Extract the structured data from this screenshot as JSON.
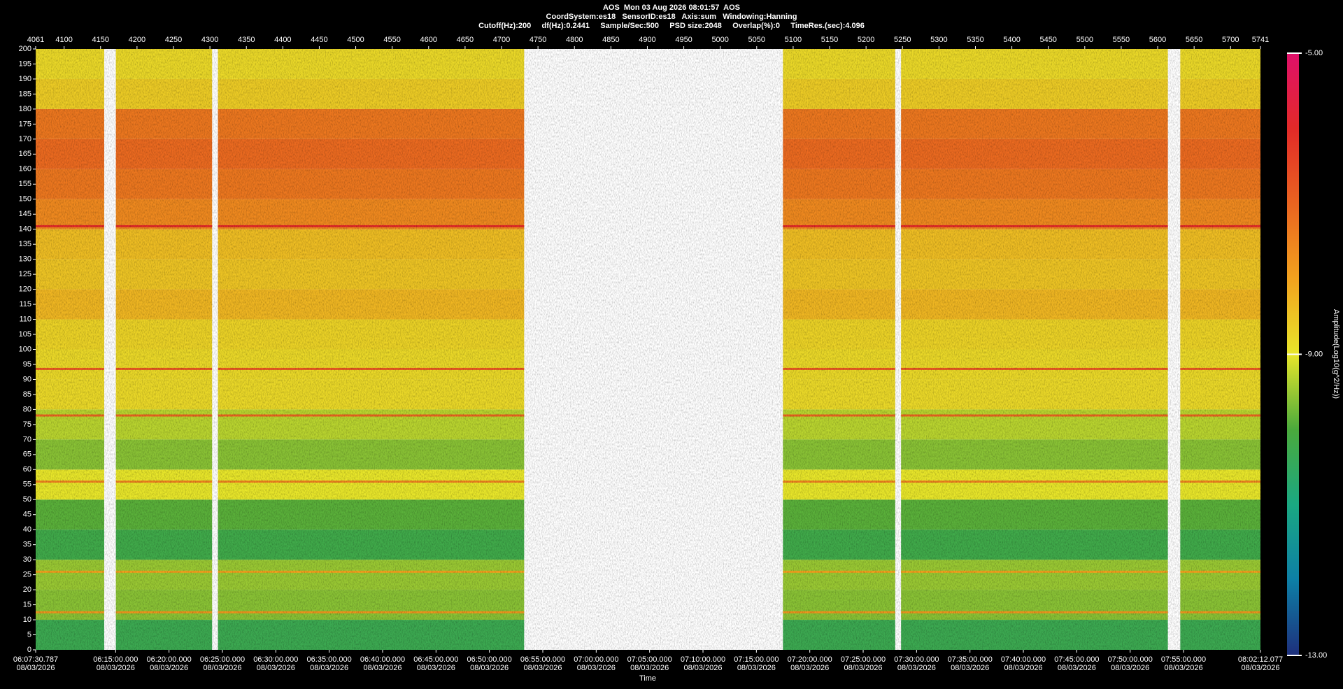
{
  "chart_data": {
    "type": "spectrogram",
    "title": "AOS  Mon 03 Aug 2026 08:01:57  AOS",
    "subtitle": "CoordSystem:es18   SensorID:es18   Axis:sum   Windowing:Hanning",
    "parameters": "Cutoff(Hz):200     df(Hz):0.2441     Sample/Sec:500     PSD size:2048     Overlap(%):0     TimeRes.(sec):4.096",
    "x_label": "Time",
    "colorbar_label": "Amplitude(Log10(g^2/Hz))",
    "xlim": [
      4061,
      5741
    ],
    "xticks": [
      4061,
      4100,
      4150,
      4200,
      4250,
      4300,
      4350,
      4400,
      4450,
      4500,
      4550,
      4600,
      4650,
      4700,
      4750,
      4800,
      4850,
      4900,
      4950,
      5000,
      5050,
      5100,
      5150,
      5200,
      5250,
      5300,
      5350,
      5400,
      5450,
      5500,
      5550,
      5600,
      5650,
      5700,
      5741
    ],
    "x2lim": [
      22050.787,
      28932.077
    ],
    "x2ticks": [
      {
        "value": 22050.787,
        "label": "06:07:30.787"
      },
      {
        "value": 22500,
        "label": "06:15:00.000"
      },
      {
        "value": 22800,
        "label": "06:20:00.000"
      },
      {
        "value": 23100,
        "label": "06:25:00.000"
      },
      {
        "value": 23400,
        "label": "06:30:00.000"
      },
      {
        "value": 23700,
        "label": "06:35:00.000"
      },
      {
        "value": 24000,
        "label": "06:40:00.000"
      },
      {
        "value": 24300,
        "label": "06:45:00.000"
      },
      {
        "value": 24600,
        "label": "06:50:00.000"
      },
      {
        "value": 24900,
        "label": "06:55:00.000"
      },
      {
        "value": 25200,
        "label": "07:00:00.000"
      },
      {
        "value": 25500,
        "label": "07:05:00.000"
      },
      {
        "value": 25800,
        "label": "07:10:00.000"
      },
      {
        "value": 26100,
        "label": "07:15:00.000"
      },
      {
        "value": 26400,
        "label": "07:20:00.000"
      },
      {
        "value": 26700,
        "label": "07:25:00.000"
      },
      {
        "value": 27000,
        "label": "07:30:00.000"
      },
      {
        "value": 27300,
        "label": "07:35:00.000"
      },
      {
        "value": 27600,
        "label": "07:40:00.000"
      },
      {
        "value": 27900,
        "label": "07:45:00.000"
      },
      {
        "value": 28200,
        "label": "07:50:00.000"
      },
      {
        "value": 28500,
        "label": "07:55:00.000"
      },
      {
        "value": 28932.077,
        "label": "08:02:12.077"
      }
    ],
    "x2tick_dates": [
      "08/03/2026",
      "08/03/2026",
      "08/03/2026",
      "08/03/2026",
      "08/03/2026",
      "08/03/2026",
      "08/03/2026",
      "08/03/2026",
      "08/03/2026",
      "08/03/2026",
      "08/03/2026",
      "08/03/2026",
      "08/03/2026",
      "08/03/2026",
      "08/03/2026",
      "08/03/2026",
      "08/03/2026",
      "08/03/2026",
      "08/03/2026",
      "08/03/2026",
      "08/03/2026",
      "08/03/2026",
      "08/03/2026"
    ],
    "ylim": [
      0,
      200
    ],
    "yticks": [
      0,
      5,
      10,
      15,
      20,
      25,
      30,
      35,
      40,
      45,
      50,
      55,
      60,
      65,
      70,
      75,
      80,
      85,
      90,
      95,
      100,
      105,
      110,
      115,
      120,
      125,
      130,
      135,
      140,
      145,
      150,
      155,
      160,
      165,
      170,
      175,
      180,
      185,
      190,
      195,
      200
    ],
    "segments": [
      [
        4061,
        4155
      ],
      [
        4171,
        4303
      ],
      [
        4311,
        4731
      ],
      [
        5086,
        5240
      ],
      [
        5248,
        5614
      ],
      [
        5631,
        5741
      ]
    ],
    "freq_edges": [
      0,
      10,
      20,
      30,
      40,
      50,
      60,
      70,
      80,
      90,
      100,
      110,
      120,
      130,
      140,
      150,
      160,
      170,
      180,
      190,
      200
    ],
    "amplitude": [
      -10.3,
      -9.6,
      -9.5,
      -10.2,
      -9.9,
      -9.0,
      -9.6,
      -9.3,
      -8.8,
      -8.8,
      -8.7,
      -8.3,
      -8.5,
      -8.4,
      -7.6,
      -7.3,
      -7.1,
      -7.3,
      -8.6,
      -8.8
    ],
    "lines": {
      "freq": [
        141,
        93.5,
        78,
        56,
        26,
        12.5
      ],
      "amplitude": [
        -6.0,
        -6.8,
        -7.0,
        -7.5,
        -8.0,
        -7.8
      ]
    },
    "clim": [
      -13,
      -5
    ],
    "cticks": [
      {
        "value": -5,
        "label": "-5.00"
      },
      {
        "value": -9,
        "label": "-9.00"
      },
      {
        "value": -13,
        "label": "-13.00"
      }
    ],
    "colormap": {
      "values": [
        -13,
        -12,
        -11,
        -10,
        -9,
        -8,
        -7,
        -6,
        -5
      ],
      "colors": [
        "#1e2f7c",
        "#0d7fa6",
        "#1aa882",
        "#4aaa3c",
        "#e8e62a",
        "#f2a21e",
        "#ea6420",
        "#e22a28",
        "#e0106a"
      ]
    }
  }
}
